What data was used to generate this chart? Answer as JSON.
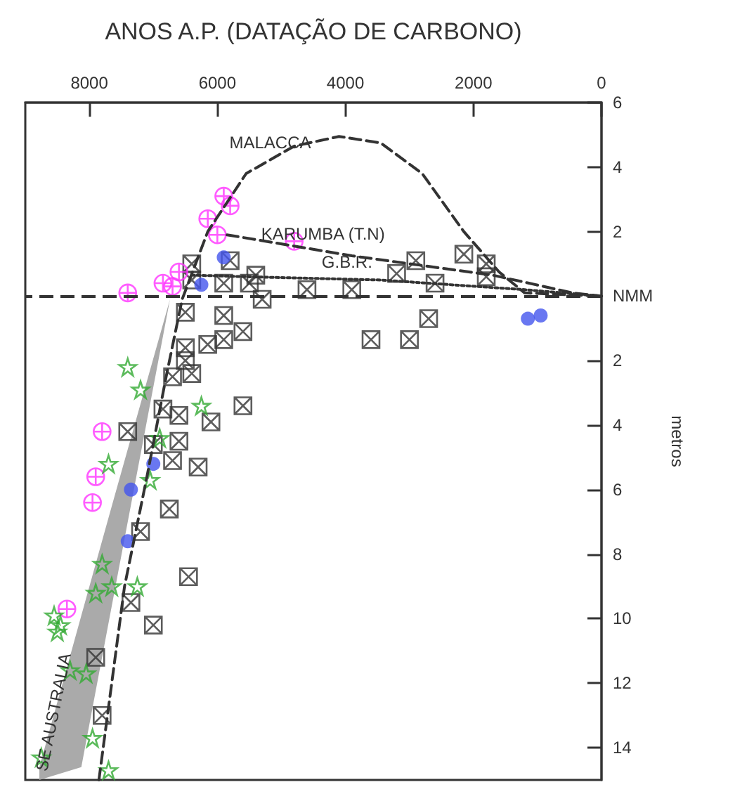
{
  "chart_data": {
    "type": "scatter",
    "xlabel": "ANOS A.P. (DATAÇÃO DE CARBONO)",
    "ylabel": "metros",
    "xlim": [
      9000,
      0
    ],
    "xticks": [
      8000,
      6000,
      4000,
      2000,
      0
    ],
    "ylim": [
      -15,
      6
    ],
    "yticks": [
      6,
      4,
      2,
      {
        "value": 0,
        "label": "NMM"
      },
      {
        "value": -2,
        "label": "2"
      },
      {
        "value": -4,
        "label": "4"
      },
      {
        "value": -6,
        "label": "6"
      },
      {
        "value": -8,
        "label": "8"
      },
      {
        "value": -10,
        "label": "10"
      },
      {
        "value": -12,
        "label": "12"
      },
      {
        "value": -14,
        "label": "14"
      }
    ],
    "annotations": [
      {
        "text": "SE AUSTRALIA",
        "x": 8560,
        "y": -12.9
      }
    ],
    "ref_lines": [
      {
        "axis": "y",
        "value": 0,
        "line_style": "dashed",
        "color": "#333333"
      }
    ],
    "series": [
      {
        "type": "line",
        "color": "#aaaaaa",
        "x": [
          8780,
          8125,
          7620,
          7180,
          6740
        ],
        "values": [
          null,
          null,
          null,
          null,
          null
        ],
        "lower": [
          -15,
          -14.6,
          -9.3,
          -4.7,
          -0.1
        ],
        "upper": [
          -14.6,
          -9.9,
          -6.3,
          -3.2,
          -0.1
        ]
      },
      {
        "type": "line",
        "name": "MALACCA",
        "color": "#333333",
        "line_style": "dashed",
        "marker": "none",
        "x": [
          7850,
          7450,
          7100,
          6800,
          6550,
          6150,
          5550,
          4800,
          4100,
          3450,
          2800,
          2150,
          1600,
          1200,
          0
        ],
        "values": [
          -15,
          -9,
          -5.6,
          -2.5,
          -0.1,
          2,
          3.8,
          4.65,
          4.95,
          4.75,
          3.8,
          2,
          0.75,
          0.1,
          0
        ]
      },
      {
        "type": "line",
        "name": "KARUMBA (T.N)",
        "color": "#333333",
        "line_style": "dashed",
        "marker": "none",
        "x": [
          5850,
          5300,
          4800,
          3900,
          1700,
          450,
          0
        ],
        "values": [
          1.9,
          1.72,
          1.55,
          1.25,
          0.65,
          0.1,
          0
        ]
      },
      {
        "type": "line",
        "name": "G.B.R.",
        "color": "#333333",
        "line_style": "dotted",
        "marker": "none",
        "x": [
          6400,
          5500,
          4500,
          3450,
          1200,
          0
        ],
        "values": [
          0.65,
          0.6,
          0.55,
          0.5,
          0.2,
          0
        ]
      },
      {
        "type": "scatter",
        "color": "#333333",
        "marker": "cross",
        "x": [
          6400,
          5800,
          5400,
          5900,
          5500,
          5300,
          6400,
          6500,
          5900,
          5600,
          5900,
          6150,
          6500,
          6500,
          6700,
          6400,
          5600,
          4600,
          3900,
          3600,
          3000,
          2700,
          3200,
          2900,
          2600,
          2150,
          1800,
          1800,
          6850,
          6600,
          6100,
          7400,
          7000,
          6600,
          6700,
          6300,
          6750,
          7200,
          6450,
          7350,
          7000,
          7900,
          7800
        ],
        "values": [
          1,
          1.1,
          0.65,
          0.4,
          0.4,
          -0.1,
          0.5,
          -0.5,
          -0.6,
          -1.1,
          -1.35,
          -1.5,
          -1.6,
          -2,
          -2.5,
          -2.4,
          -3.4,
          0.2,
          0.2,
          -1.35,
          -1.35,
          -0.7,
          0.7,
          1.1,
          0.4,
          1.3,
          1,
          0.6,
          -3.5,
          -3.7,
          -3.9,
          -4.2,
          -4.6,
          -4.5,
          -5.1,
          -5.3,
          -6.6,
          -7.3,
          -8.7,
          -9.5,
          -10.2,
          -11.2,
          -13
        ]
      },
      {
        "type": "scatter",
        "color": "#ff33ff",
        "marker": "circle",
        "x": [
          5900,
          5800,
          6150,
          6000,
          4800,
          6600,
          6850,
          6700,
          7400,
          7800,
          7900,
          7950,
          8350
        ],
        "values": [
          3.1,
          2.8,
          2.4,
          1.9,
          1.7,
          0.75,
          0.4,
          0.3,
          0.1,
          -4.2,
          -5.6,
          -6.4,
          -9.7
        ]
      },
      {
        "type": "scatter",
        "color": "#4455ee",
        "x": [
          5900,
          6250,
          1150,
          950,
          7000,
          7350,
          7400
        ],
        "values": [
          1.2,
          0.35,
          -0.7,
          -0.6,
          -5.2,
          -6,
          -7.6
        ]
      },
      {
        "type": "scatter",
        "color": "#33aa33",
        "marker": "star",
        "x": [
          7400,
          7200,
          6250,
          6900,
          7700,
          7050,
          7800,
          7900,
          7650,
          7250,
          8550,
          8450,
          8500,
          8300,
          8050,
          7950,
          7700,
          8750
        ],
        "values": [
          -2.2,
          -2.9,
          -3.4,
          -4.4,
          -5.2,
          -5.7,
          -8.3,
          -9.2,
          -9,
          -9,
          -9.9,
          -10.2,
          -10.4,
          -11.6,
          -11.7,
          -13.7,
          -14.7,
          -14.3
        ]
      }
    ]
  }
}
